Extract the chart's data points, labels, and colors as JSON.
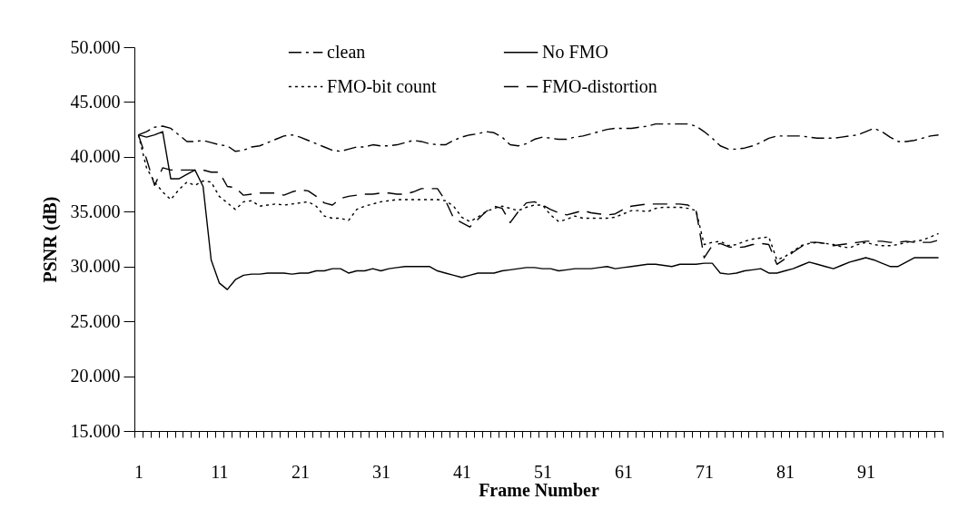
{
  "chart_data": {
    "type": "line",
    "xlabel": "Frame Number",
    "ylabel": "PSNR (dB)",
    "categories": [
      "1",
      null,
      null,
      null,
      null,
      null,
      null,
      null,
      null,
      null,
      "11",
      null,
      null,
      null,
      null,
      null,
      null,
      null,
      null,
      null,
      "21",
      null,
      null,
      null,
      null,
      null,
      null,
      null,
      null,
      null,
      "31",
      null,
      null,
      null,
      null,
      null,
      null,
      null,
      null,
      null,
      "41",
      null,
      null,
      null,
      null,
      null,
      null,
      null,
      null,
      null,
      "51",
      null,
      null,
      null,
      null,
      null,
      null,
      null,
      null,
      null,
      "61",
      null,
      null,
      null,
      null,
      null,
      null,
      null,
      null,
      null,
      "71",
      null,
      null,
      null,
      null,
      null,
      null,
      null,
      null,
      null,
      "81",
      null,
      null,
      null,
      null,
      null,
      null,
      null,
      null,
      null,
      "91",
      null,
      null,
      null,
      null,
      null,
      null,
      null,
      null,
      null
    ],
    "ylim": [
      15,
      50
    ],
    "yticks": [
      {
        "value": 15,
        "label": "15.000"
      },
      {
        "value": 20,
        "label": "20.000"
      },
      {
        "value": 25,
        "label": "25.000"
      },
      {
        "value": 30,
        "label": "30.000"
      },
      {
        "value": 35,
        "label": "35.000"
      },
      {
        "value": 40,
        "label": "40.000"
      },
      {
        "value": 45,
        "label": "45.000"
      },
      {
        "value": 50,
        "label": "50.000"
      }
    ],
    "grid": false,
    "legend": "top",
    "marker": "none",
    "series": [
      {
        "name": "clean",
        "color": "#000000",
        "line_style": "dashdot",
        "values": [
          42.0,
          42.3,
          42.7,
          42.8,
          42.6,
          42.0,
          41.4,
          41.4,
          41.5,
          41.3,
          41.1,
          41.0,
          40.5,
          40.6,
          40.9,
          41.0,
          41.3,
          41.6,
          41.9,
          42.0,
          41.8,
          41.5,
          41.2,
          40.9,
          40.6,
          40.5,
          40.7,
          40.9,
          40.9,
          41.1,
          41.0,
          41.0,
          41.1,
          41.3,
          41.5,
          41.4,
          41.2,
          41.1,
          41.1,
          41.5,
          41.8,
          42.0,
          42.1,
          42.3,
          42.2,
          41.8,
          41.1,
          41.0,
          41.2,
          41.6,
          41.8,
          41.7,
          41.6,
          41.6,
          41.8,
          41.9,
          42.1,
          42.3,
          42.5,
          42.6,
          42.6,
          42.6,
          42.7,
          42.8,
          43.0,
          43.0,
          43.0,
          43.0,
          43.0,
          42.8,
          42.3,
          41.7,
          41.0,
          40.7,
          40.7,
          40.8,
          41.0,
          41.3,
          41.7,
          41.9,
          41.9,
          41.9,
          41.9,
          41.8,
          41.7,
          41.7,
          41.7,
          41.8,
          41.9,
          42.0,
          42.3,
          42.6,
          42.3,
          41.8,
          41.4,
          41.4,
          41.5,
          41.7,
          41.9,
          42.0
        ]
      },
      {
        "name": "No FMO",
        "color": "#000000",
        "line_style": "solid",
        "values": [
          42.0,
          41.8,
          42.0,
          42.3,
          38.0,
          38.0,
          38.4,
          38.8,
          37.3,
          30.6,
          28.5,
          27.9,
          28.8,
          29.2,
          29.3,
          29.3,
          29.4,
          29.4,
          29.4,
          29.3,
          29.4,
          29.4,
          29.6,
          29.6,
          29.8,
          29.8,
          29.4,
          29.6,
          29.6,
          29.8,
          29.6,
          29.8,
          29.9,
          30.0,
          30.0,
          30.0,
          30.0,
          29.6,
          29.4,
          29.2,
          29.0,
          29.2,
          29.4,
          29.4,
          29.4,
          29.6,
          29.7,
          29.8,
          29.9,
          29.9,
          29.8,
          29.8,
          29.6,
          29.7,
          29.8,
          29.8,
          29.8,
          29.9,
          30.0,
          29.8,
          29.9,
          30.0,
          30.1,
          30.2,
          30.2,
          30.1,
          30.0,
          30.2,
          30.2,
          30.2,
          30.3,
          30.3,
          29.4,
          29.3,
          29.4,
          29.6,
          29.7,
          29.8,
          29.4,
          29.4,
          29.6,
          29.8,
          30.1,
          30.4,
          30.2,
          30.0,
          29.8,
          30.1,
          30.4,
          30.6,
          30.8,
          30.6,
          30.3,
          30.0,
          30.0,
          30.4,
          30.8,
          30.8,
          30.8,
          30.8
        ]
      },
      {
        "name": "FMO-bit count",
        "color": "#000000",
        "line_style": "dotted",
        "values": [
          42.0,
          39.0,
          37.7,
          36.8,
          36.1,
          37.0,
          37.7,
          37.4,
          37.8,
          37.7,
          36.4,
          35.8,
          35.2,
          35.9,
          36.0,
          35.5,
          35.6,
          35.7,
          35.6,
          35.7,
          35.8,
          35.9,
          35.5,
          34.6,
          34.4,
          34.4,
          34.2,
          35.2,
          35.5,
          35.7,
          35.9,
          36.0,
          36.1,
          36.1,
          36.1,
          36.1,
          36.1,
          36.1,
          36.0,
          35.5,
          34.5,
          34.1,
          34.5,
          35.0,
          35.3,
          35.5,
          35.3,
          35.1,
          35.4,
          35.6,
          35.6,
          34.7,
          34.1,
          34.3,
          34.6,
          34.4,
          34.4,
          34.4,
          34.4,
          34.5,
          34.8,
          35.1,
          35.1,
          35.0,
          35.3,
          35.4,
          35.4,
          35.4,
          35.3,
          35.1,
          32.0,
          32.2,
          32.3,
          31.9,
          32.0,
          32.3,
          32.5,
          32.6,
          32.7,
          30.6,
          30.9,
          31.4,
          31.9,
          32.1,
          32.2,
          32.1,
          32.0,
          31.8,
          31.7,
          32.0,
          32.2,
          32.0,
          31.9,
          31.9,
          32.0,
          32.2,
          32.3,
          32.4,
          32.7,
          33.0
        ]
      },
      {
        "name": "FMO-distortion",
        "color": "#000000",
        "line_style": "dashed",
        "values": [
          42.0,
          39.8,
          37.4,
          39.0,
          38.8,
          38.8,
          38.8,
          38.8,
          38.8,
          38.6,
          38.6,
          37.3,
          37.2,
          36.5,
          36.6,
          36.7,
          36.7,
          36.7,
          36.5,
          36.8,
          37.0,
          36.9,
          36.4,
          35.8,
          35.6,
          36.2,
          36.4,
          36.5,
          36.6,
          36.6,
          36.7,
          36.7,
          36.6,
          36.6,
          36.8,
          37.1,
          37.1,
          37.1,
          36.0,
          34.4,
          34.0,
          33.6,
          34.3,
          35.0,
          35.5,
          35.3,
          34.0,
          35.0,
          35.8,
          35.9,
          35.6,
          35.2,
          34.9,
          34.7,
          34.9,
          35.1,
          34.9,
          34.8,
          34.7,
          34.8,
          35.2,
          35.5,
          35.6,
          35.7,
          35.7,
          35.7,
          35.7,
          35.7,
          35.6,
          35.1,
          30.8,
          31.9,
          32.1,
          31.8,
          31.7,
          31.8,
          32.0,
          32.1,
          32.0,
          30.2,
          30.7,
          31.3,
          31.8,
          32.2,
          32.2,
          32.1,
          31.9,
          32.0,
          32.1,
          32.2,
          32.3,
          32.3,
          32.3,
          32.2,
          32.2,
          32.3,
          32.2,
          32.2,
          32.2,
          32.4
        ]
      }
    ]
  }
}
